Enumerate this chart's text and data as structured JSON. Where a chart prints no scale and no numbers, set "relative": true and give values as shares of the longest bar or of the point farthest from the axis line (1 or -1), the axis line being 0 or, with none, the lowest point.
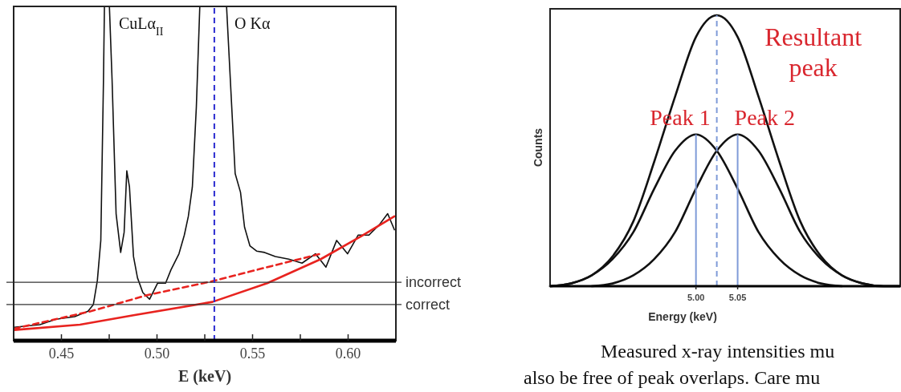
{
  "chart_data": [
    {
      "type": "line",
      "relative": true,
      "xlabel": "E (keV)",
      "xlim": [
        0.425,
        0.625
      ],
      "xticks": [
        {
          "value": 0.45,
          "label": "0.45"
        },
        {
          "value": 0.475,
          "label": null
        },
        {
          "value": 0.5,
          "label": "0.50"
        },
        {
          "value": 0.525,
          "label": null
        },
        {
          "value": 0.55,
          "label": "0.55"
        },
        {
          "value": 0.575,
          "label": null
        },
        {
          "value": 0.6,
          "label": "0.60"
        }
      ],
      "series": [
        {
          "color": "#111111",
          "x": [
            0.4253,
            0.4387,
            0.4471,
            0.4569,
            0.4639,
            0.4667,
            0.4688,
            0.4706,
            0.472,
            0.4725,
            0.4751,
            0.4765,
            0.4786,
            0.481,
            0.4828,
            0.4842,
            0.4856,
            0.4877,
            0.4898,
            0.4926,
            0.4961,
            0.5003,
            0.5045,
            0.5073,
            0.5115,
            0.5143,
            0.5164,
            0.5185,
            0.5206,
            0.5224,
            0.5364,
            0.5409,
            0.5437,
            0.5458,
            0.5486,
            0.5521,
            0.5563,
            0.5619,
            0.5689,
            0.5759,
            0.5829,
            0.5884,
            0.594,
            0.5997,
            0.6053,
            0.6109,
            0.6165,
            0.6207,
            0.6242
          ],
          "values": [
            0.04,
            0.048,
            0.064,
            0.072,
            0.088,
            0.108,
            0.18,
            0.3,
            0.78,
            1,
            1,
            0.78,
            0.38,
            0.264,
            0.324,
            0.508,
            0.46,
            0.252,
            0.188,
            0.144,
            0.124,
            0.172,
            0.172,
            0.212,
            0.26,
            0.316,
            0.372,
            0.46,
            0.7,
            1,
            1,
            0.5,
            0.444,
            0.34,
            0.284,
            0.268,
            0.264,
            0.252,
            0.244,
            0.232,
            0.26,
            0.22,
            0.3,
            0.26,
            0.316,
            0.316,
            0.348,
            0.38,
            0.332
          ]
        },
        {
          "color": "#e8231f",
          "line_style": "dashed",
          "x": [
            0.4253,
            0.4653,
            0.4947,
            0.529,
            0.5577,
            0.5857
          ],
          "values": [
            0.036,
            0.088,
            0.136,
            0.178,
            0.22,
            0.26
          ]
        },
        {
          "color": "#e8231f",
          "line_style": "solid",
          "x": [
            0.4253,
            0.4597,
            0.4877,
            0.529,
            0.5577,
            0.5857,
            0.6067,
            0.6242
          ],
          "values": [
            0.032,
            0.048,
            0.076,
            0.116,
            0.172,
            0.244,
            0.312,
            0.372
          ]
        }
      ],
      "ref_lines": [
        {
          "axis": "y",
          "value": 0.175,
          "label": "incorrect",
          "color": "#333333"
        },
        {
          "axis": "y",
          "value": 0.108,
          "label": "correct",
          "color": "#333333"
        },
        {
          "axis": "x",
          "value": 0.53,
          "color": "#2b2bd0",
          "line_style": "dashed"
        }
      ],
      "annotations": [
        "CuLα$_{II}$",
        "O Kα"
      ]
    },
    {
      "type": "line",
      "relative": true,
      "xlabel": "Energy (keV)",
      "ylabel": "Counts",
      "xlim": [
        4.825,
        5.245
      ],
      "xticks": [
        {
          "value": 5,
          "label": "5.00"
        },
        {
          "value": 5.05,
          "label": "5.05"
        }
      ],
      "x": [
        4.825,
        4.85,
        4.875,
        4.9,
        4.925,
        4.95,
        4.975,
        5.0,
        5.025,
        5.05,
        5.075,
        5.1,
        5.125,
        5.15,
        5.175,
        5.2,
        5.225,
        5.245
      ],
      "series": [
        {
          "name": "Resultant peak",
          "color": "#111111",
          "values": [
            0,
            0.01,
            0.04,
            0.11,
            0.24,
            0.46,
            0.7,
            0.92,
            1,
            0.92,
            0.7,
            0.46,
            0.24,
            0.11,
            0.04,
            0.01,
            0,
            0
          ]
        },
        {
          "name": "Peak 1",
          "color": "#111111",
          "values": [
            0,
            0.01,
            0.04,
            0.1,
            0.2,
            0.36,
            0.5,
            0.56,
            0.5,
            0.36,
            0.2,
            0.1,
            0.04,
            0.01,
            0,
            null,
            null,
            null
          ]
        },
        {
          "name": "Peak 2",
          "color": "#111111",
          "values": [
            null,
            null,
            0,
            0.01,
            0.04,
            0.1,
            0.2,
            0.36,
            0.5,
            0.56,
            0.5,
            0.36,
            0.2,
            0.1,
            0.04,
            0.01,
            0,
            0
          ]
        }
      ],
      "ref_lines": [
        {
          "axis": "x",
          "value": 5.0,
          "color": "#7f9bd8",
          "line_style": "solid"
        },
        {
          "axis": "x",
          "value": 5.05,
          "color": "#7f9bd8",
          "line_style": "solid"
        },
        {
          "axis": "x",
          "value": 5.025,
          "color": "#7f9bd8",
          "line_style": "dashed"
        }
      ],
      "annotations": [
        "Measured x-ray intensities mu",
        "also be free of peak overlaps. Care mu"
      ]
    }
  ]
}
